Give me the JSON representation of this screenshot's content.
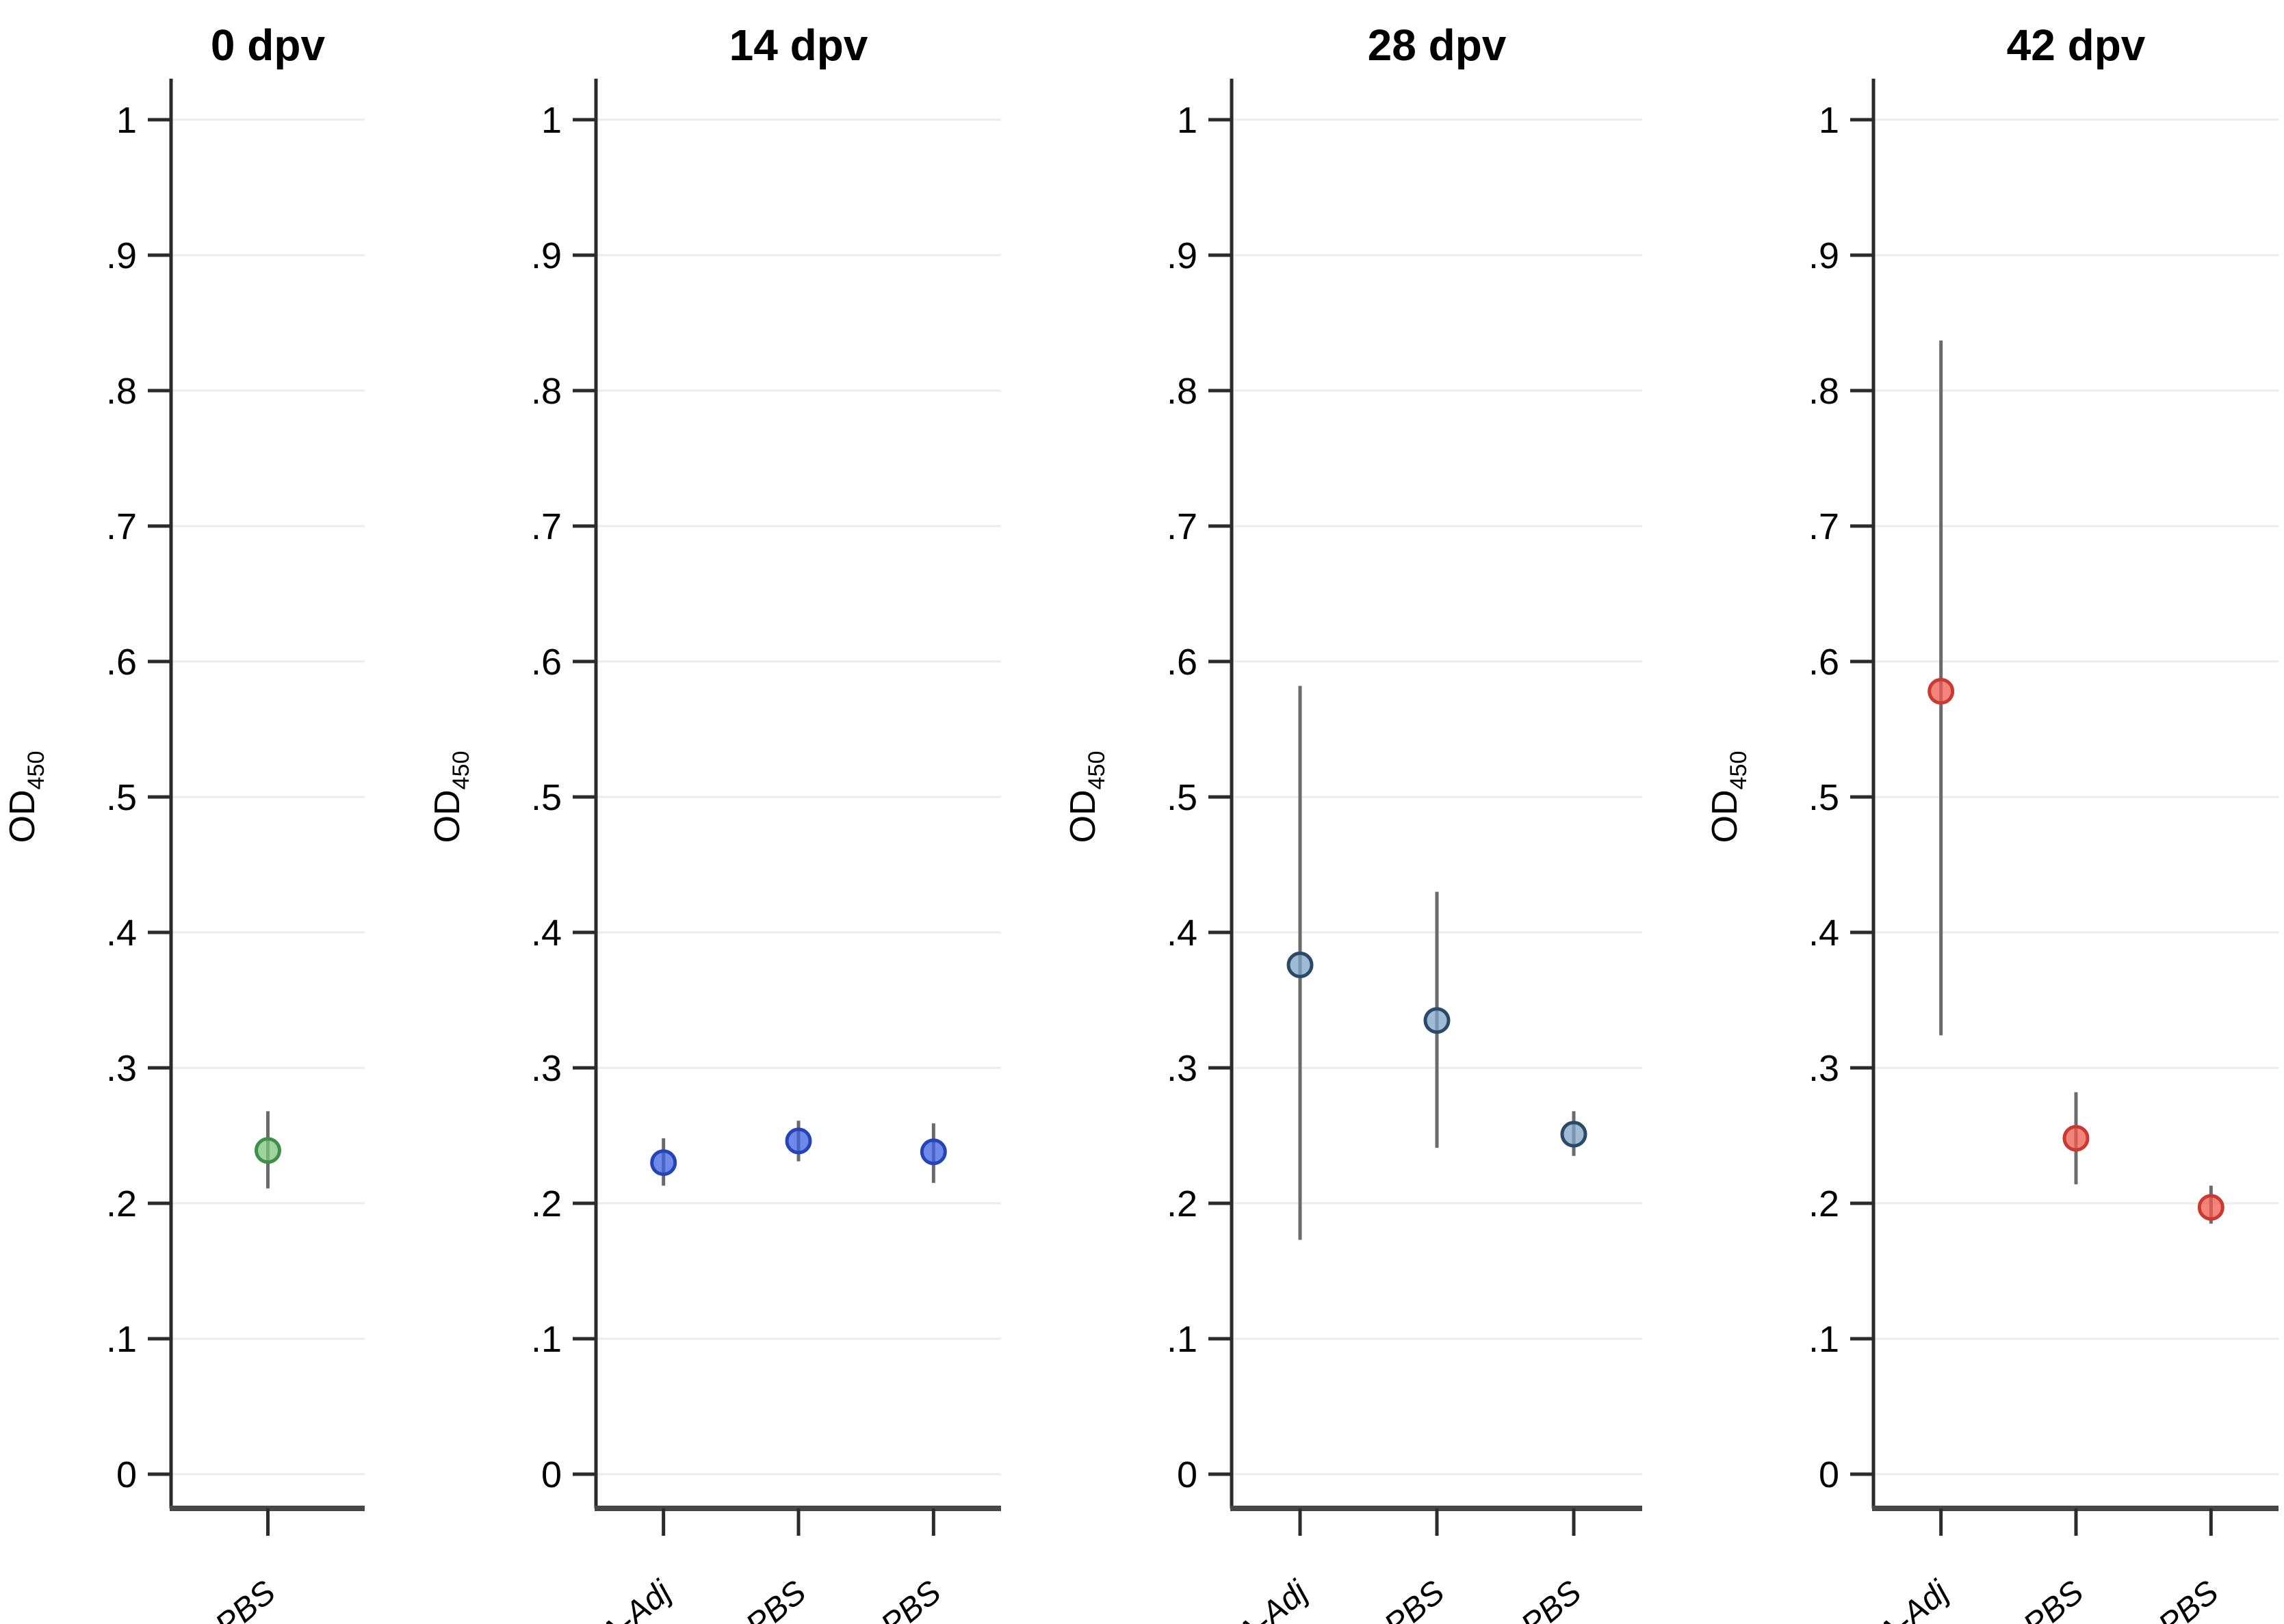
{
  "figure": {
    "background": "#ffffff",
    "text_color": "#000000",
    "grid_color": "#ececec",
    "y_axis_color": "#2b2b2b",
    "x_axis_color": "#474747",
    "errorbar_color": "#6b6b6b"
  },
  "chart_data": [
    {
      "type": "scatter",
      "title": "0 dpv",
      "ylabel": "OD",
      "ylabel_sub": "450",
      "xlabel": "",
      "ylim": [
        0,
        1
      ],
      "grid": true,
      "legend_position": "none",
      "ytick_values": [
        0,
        0.1,
        0.2,
        0.3,
        0.4,
        0.5,
        0.6,
        0.7,
        0.8,
        0.9,
        1
      ],
      "ytick_labels": [
        "0",
        ".1",
        ".2",
        ".3",
        ".4",
        ".5",
        ".6",
        ".7",
        ".8",
        ".9",
        "1"
      ],
      "categories": [
        "PBS"
      ],
      "points": [
        {
          "category": "PBS",
          "mean": 0.239,
          "ci_low": 0.211,
          "ci_high": 0.268
        }
      ],
      "marker_fill": "#7cc47c",
      "marker_stroke": "#3f8f4a"
    },
    {
      "type": "scatter",
      "title": "14 dpv",
      "ylabel": "OD",
      "ylabel_sub": "450",
      "xlabel": "",
      "ylim": [
        0,
        1
      ],
      "grid": true,
      "legend_position": "none",
      "ytick_values": [
        0,
        0.1,
        0.2,
        0.3,
        0.4,
        0.5,
        0.6,
        0.7,
        0.8,
        0.9,
        1
      ],
      "ytick_labels": [
        "0",
        ".1",
        ".2",
        ".3",
        ".4",
        ".5",
        ".6",
        ".7",
        ".8",
        ".9",
        "1"
      ],
      "categories": [
        "BSA-Adj",
        "BSA-PBS",
        "PBS"
      ],
      "points": [
        {
          "category": "BSA-Adj",
          "mean": 0.23,
          "ci_low": 0.213,
          "ci_high": 0.248
        },
        {
          "category": "BSA-PBS",
          "mean": 0.246,
          "ci_low": 0.231,
          "ci_high": 0.261
        },
        {
          "category": "PBS",
          "mean": 0.238,
          "ci_low": 0.215,
          "ci_high": 0.259
        }
      ],
      "marker_fill": "#3f62e0",
      "marker_stroke": "#2743b8"
    },
    {
      "type": "scatter",
      "title": "28 dpv",
      "ylabel": "OD",
      "ylabel_sub": "450",
      "xlabel": "",
      "ylim": [
        0,
        1
      ],
      "grid": true,
      "legend_position": "none",
      "ytick_values": [
        0,
        0.1,
        0.2,
        0.3,
        0.4,
        0.5,
        0.6,
        0.7,
        0.8,
        0.9,
        1
      ],
      "ytick_labels": [
        "0",
        ".1",
        ".2",
        ".3",
        ".4",
        ".5",
        ".6",
        ".7",
        ".8",
        ".9",
        "1"
      ],
      "categories": [
        "BSA-Adj",
        "BSA-PBS",
        "PBS"
      ],
      "points": [
        {
          "category": "BSA-Adj",
          "mean": 0.376,
          "ci_low": 0.173,
          "ci_high": 0.582
        },
        {
          "category": "BSA-PBS",
          "mean": 0.335,
          "ci_low": 0.241,
          "ci_high": 0.43
        },
        {
          "category": "PBS",
          "mean": 0.251,
          "ci_low": 0.235,
          "ci_high": 0.268
        }
      ],
      "marker_fill": "#7da3c6",
      "marker_stroke": "#2b4a66"
    },
    {
      "type": "scatter",
      "title": "42 dpv",
      "ylabel": "OD",
      "ylabel_sub": "450",
      "xlabel": "",
      "ylim": [
        0,
        1
      ],
      "grid": true,
      "legend_position": "none",
      "ytick_values": [
        0,
        0.1,
        0.2,
        0.3,
        0.4,
        0.5,
        0.6,
        0.7,
        0.8,
        0.9,
        1
      ],
      "ytick_labels": [
        "0",
        ".1",
        ".2",
        ".3",
        ".4",
        ".5",
        ".6",
        ".7",
        ".8",
        ".9",
        "1"
      ],
      "categories": [
        "BSA-Adj",
        "BSA-PBS",
        "PBS"
      ],
      "points": [
        {
          "category": "BSA-Adj",
          "mean": 0.578,
          "ci_low": 0.324,
          "ci_high": 0.837
        },
        {
          "category": "BSA-PBS",
          "mean": 0.248,
          "ci_low": 0.214,
          "ci_high": 0.282
        },
        {
          "category": "PBS",
          "mean": 0.197,
          "ci_low": 0.185,
          "ci_high": 0.213
        }
      ],
      "marker_fill": "#f05a50",
      "marker_stroke": "#c93a32"
    }
  ]
}
